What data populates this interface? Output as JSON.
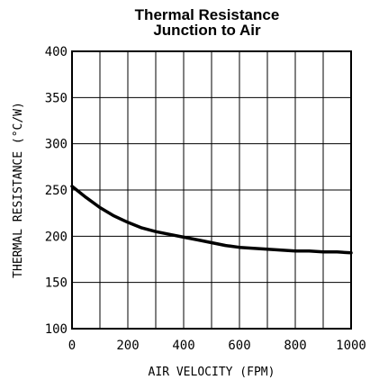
{
  "chart_data": {
    "type": "line",
    "title": [
      "Thermal Resistance",
      "Junction to Air"
    ],
    "xlabel": "AIR VELOCITY (FPM)",
    "ylabel": "THERMAL RESISTANCE (°C/W)",
    "xlim": [
      0,
      1000
    ],
    "ylim": [
      100,
      400
    ],
    "grid": true,
    "x_ticks": [
      0,
      100,
      200,
      300,
      400,
      500,
      600,
      700,
      800,
      900,
      1000
    ],
    "x_tick_labels": [
      "0",
      "200",
      "400",
      "600",
      "800",
      "1000"
    ],
    "x_tick_label_values": [
      0,
      200,
      400,
      600,
      800,
      1000
    ],
    "y_ticks": [
      100,
      150,
      200,
      250,
      300,
      350,
      400
    ],
    "y_tick_labels": [
      "100",
      "150",
      "200",
      "250",
      "300",
      "350",
      "400"
    ],
    "series": [
      {
        "color": "#000000",
        "x": [
          0,
          50,
          100,
          150,
          200,
          250,
          300,
          350,
          400,
          450,
          500,
          550,
          600,
          650,
          700,
          750,
          800,
          850,
          900,
          950,
          1000
        ],
        "y": [
          254,
          242,
          231,
          222,
          215,
          209,
          205,
          202,
          199,
          196,
          193,
          190,
          188,
          187,
          186,
          185,
          184,
          184,
          183,
          183,
          182
        ]
      }
    ]
  }
}
